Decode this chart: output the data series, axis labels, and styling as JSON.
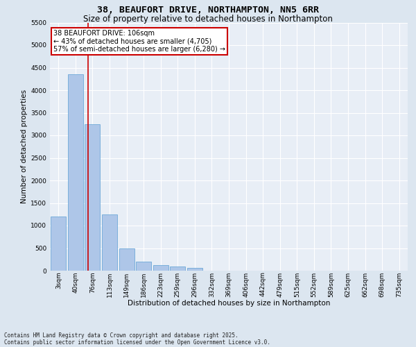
{
  "title_line1": "38, BEAUFORT DRIVE, NORTHAMPTON, NN5 6RR",
  "title_line2": "Size of property relative to detached houses in Northampton",
  "xlabel": "Distribution of detached houses by size in Northampton",
  "ylabel": "Number of detached properties",
  "categories": [
    "3sqm",
    "40sqm",
    "76sqm",
    "113sqm",
    "149sqm",
    "186sqm",
    "223sqm",
    "259sqm",
    "296sqm",
    "332sqm",
    "369sqm",
    "406sqm",
    "442sqm",
    "479sqm",
    "515sqm",
    "552sqm",
    "589sqm",
    "625sqm",
    "662sqm",
    "698sqm",
    "735sqm"
  ],
  "bar_heights": [
    1200,
    4350,
    3250,
    1250,
    500,
    200,
    130,
    90,
    60,
    0,
    0,
    0,
    0,
    0,
    0,
    0,
    0,
    0,
    0,
    0,
    0
  ],
  "bar_color": "#aec6e8",
  "bar_edge_color": "#5a9fd4",
  "vline_color": "#cc0000",
  "vline_pos": 1.72,
  "ylim_max": 5500,
  "yticks": [
    0,
    500,
    1000,
    1500,
    2000,
    2500,
    3000,
    3500,
    4000,
    4500,
    5000,
    5500
  ],
  "annotation_title": "38 BEAUFORT DRIVE: 106sqm",
  "annotation_line1": "← 43% of detached houses are smaller (4,705)",
  "annotation_line2": "57% of semi-detached houses are larger (6,280) →",
  "annotation_box_color": "#cc0000",
  "footer_line1": "Contains HM Land Registry data © Crown copyright and database right 2025.",
  "footer_line2": "Contains public sector information licensed under the Open Government Licence v3.0.",
  "bg_color": "#dce6f0",
  "plot_bg_color": "#e8eef6",
  "title_fontsize": 9.5,
  "subtitle_fontsize": 8.5,
  "axis_label_fontsize": 7.5,
  "tick_fontsize": 6.5,
  "annotation_fontsize": 7,
  "footer_fontsize": 5.5
}
